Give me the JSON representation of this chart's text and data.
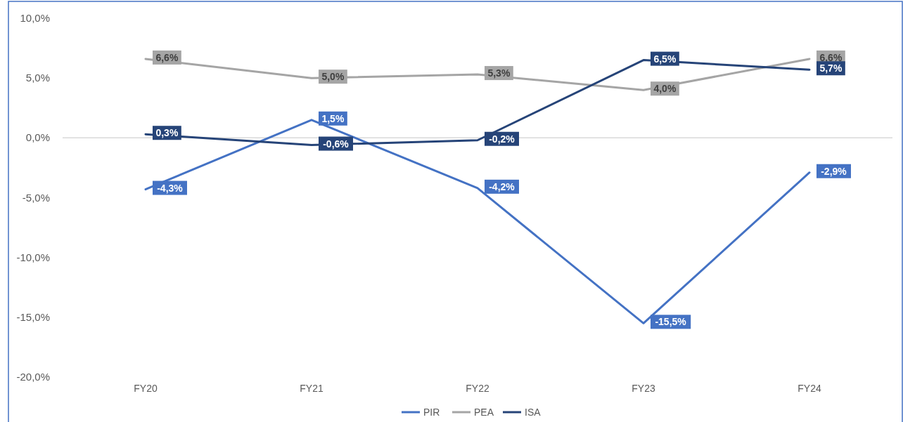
{
  "chart_data": {
    "type": "line",
    "categories": [
      "FY20",
      "FY21",
      "FY22",
      "FY23",
      "FY24"
    ],
    "series": [
      {
        "name": "PIR",
        "color": "#4472c4",
        "values": [
          -4.3,
          1.5,
          -4.2,
          -15.5,
          -2.9
        ],
        "value_labels": [
          "-4,3%",
          "1,5%",
          "-4,2%",
          "-15,5%",
          "-2,9%"
        ]
      },
      {
        "name": "PEA",
        "color": "#a5a5a5",
        "values": [
          6.6,
          5.0,
          5.3,
          4.0,
          6.6
        ],
        "value_labels": [
          "6,6%",
          "5,0%",
          "5,3%",
          "4,0%",
          "6,6%"
        ]
      },
      {
        "name": "ISA",
        "color": "#264478",
        "values": [
          0.3,
          -0.6,
          -0.2,
          6.5,
          5.7
        ],
        "value_labels": [
          "0,3%",
          "-0,6%",
          "-0,2%",
          "6,5%",
          "5,7%"
        ]
      }
    ],
    "ylim": [
      -20,
      10
    ],
    "yticks": [
      {
        "value": -20,
        "label": "-20,0%"
      },
      {
        "value": -15,
        "label": "-15,0%"
      },
      {
        "value": -10,
        "label": "-10,0%"
      },
      {
        "value": -5,
        "label": "-5,0%"
      },
      {
        "value": 0,
        "label": "0,0%"
      },
      {
        "value": 5,
        "label": "5,0%"
      },
      {
        "value": 10,
        "label": "10,0%"
      }
    ],
    "legend": "bottom",
    "line_style": "solid"
  }
}
